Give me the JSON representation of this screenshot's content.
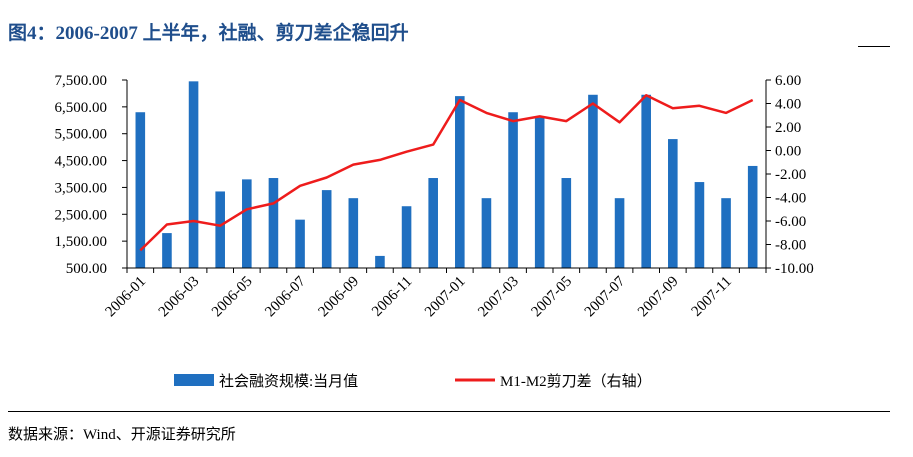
{
  "title": "图4：2006-2007 上半年，社融、剪刀差企稳回升",
  "source": "数据来源：Wind、开源证券研究所",
  "colors": {
    "bar": "#1f6fc0",
    "line": "#ee1c1c",
    "title": "#1f4e8c",
    "axis": "#000000"
  },
  "chart_data": {
    "type": "bar",
    "categories": [
      "2006-01",
      "2006-02",
      "2006-03",
      "2006-04",
      "2006-05",
      "2006-06",
      "2006-07",
      "2006-08",
      "2006-09",
      "2006-10",
      "2006-11",
      "2006-12",
      "2007-01",
      "2007-02",
      "2007-03",
      "2007-04",
      "2007-05",
      "2007-06",
      "2007-07",
      "2007-08",
      "2007-09",
      "2007-10",
      "2007-11",
      "2007-12"
    ],
    "x_tick_labels": [
      "2006-01",
      "2006-03",
      "2006-05",
      "2006-07",
      "2006-09",
      "2006-11",
      "2007-01",
      "2007-03",
      "2007-05",
      "2007-07",
      "2007-09",
      "2007-11"
    ],
    "series": [
      {
        "name": "社会融资规模:当月值",
        "type": "bar",
        "axis": "left",
        "values": [
          6300,
          1800,
          7450,
          3350,
          3800,
          3850,
          2300,
          3400,
          3100,
          950,
          2800,
          3850,
          6900,
          3100,
          6300,
          6100,
          3850,
          6950,
          3100,
          6950,
          5300,
          3700,
          3100,
          4300
        ]
      },
      {
        "name": "M1-M2剪刀差（右轴）",
        "type": "line",
        "axis": "right",
        "values": [
          -8.5,
          -6.3,
          -6.0,
          -6.4,
          -5.0,
          -4.5,
          -3.0,
          -2.3,
          -1.2,
          -0.8,
          -0.1,
          0.5,
          4.3,
          3.2,
          2.5,
          2.9,
          2.5,
          4.0,
          2.4,
          4.7,
          3.6,
          3.8,
          3.2,
          4.3
        ]
      }
    ],
    "left_axis": {
      "ylim": [
        500,
        7500
      ],
      "ticks": [
        500,
        1500,
        2500,
        3500,
        4500,
        5500,
        6500,
        7500
      ],
      "tick_labels": [
        "500.00",
        "1,500.00",
        "2,500.00",
        "3,500.00",
        "4,500.00",
        "5,500.00",
        "6,500.00",
        "7,500.00"
      ]
    },
    "right_axis": {
      "ylim": [
        -10,
        6
      ],
      "ticks": [
        -10,
        -8,
        -6,
        -4,
        -2,
        0,
        2,
        4,
        6
      ],
      "tick_labels": [
        "-10.00",
        "-8.00",
        "-6.00",
        "-4.00",
        "-2.00",
        "0.00",
        "2.00",
        "4.00",
        "6.00"
      ]
    },
    "legend": {
      "placement": "bottom"
    },
    "grid": false
  }
}
